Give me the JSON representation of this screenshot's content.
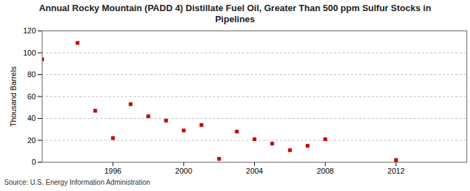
{
  "chart_data": {
    "type": "scatter",
    "title": "Annual Rocky Mountain (PADD 4) Distillate Fuel Oil, Greater Than 500 ppm Sulfur Stocks in Pipelines",
    "y_label": "Thousand Barrels",
    "source": "Source: U.S. Energy Information Administration",
    "x": [
      1992,
      1994,
      1995,
      1996,
      1997,
      1998,
      1999,
      2000,
      2001,
      2002,
      2003,
      2004,
      2005,
      2006,
      2007,
      2008,
      2012
    ],
    "values": [
      94,
      109,
      47,
      22,
      53,
      42,
      38,
      29,
      34,
      3,
      28,
      21,
      17,
      11,
      15,
      21,
      2
    ],
    "color": "#cc0000",
    "marker": "square",
    "xlim": [
      1992,
      2016
    ],
    "xticks": [
      1996,
      2000,
      2004,
      2008,
      2012
    ],
    "ylim": [
      0,
      120
    ],
    "yticks": [
      0,
      20,
      40,
      60,
      80,
      100,
      120
    ],
    "grid": true
  }
}
